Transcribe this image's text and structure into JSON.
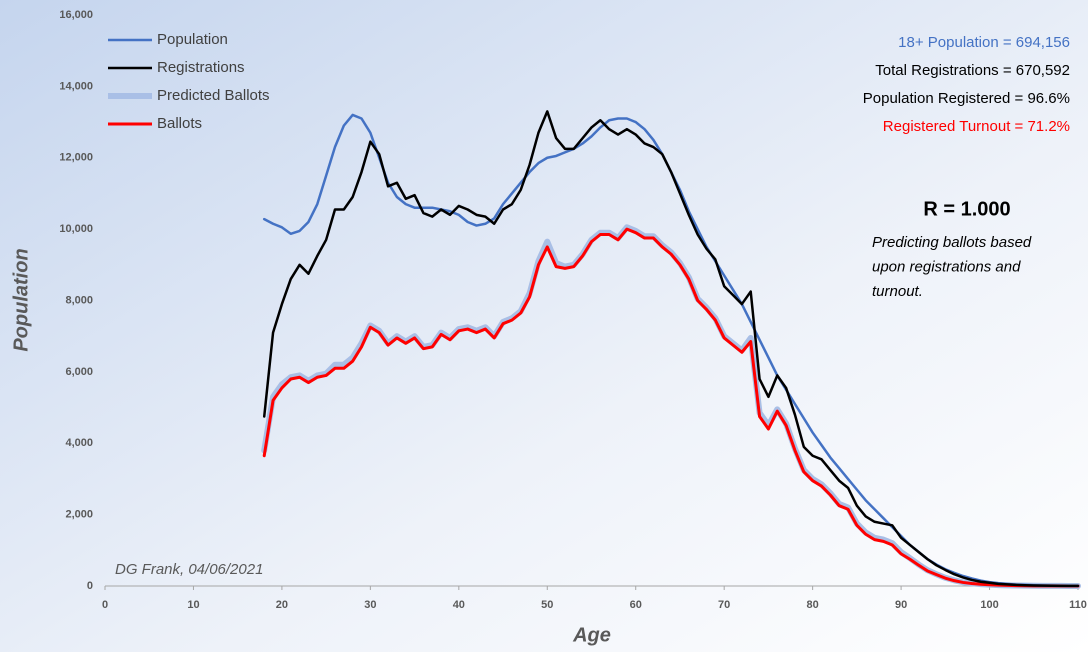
{
  "chart_data": {
    "type": "line",
    "xlabel": "Age",
    "ylabel": "Population",
    "xlim": [
      0,
      110
    ],
    "ylim": [
      0,
      16000
    ],
    "xticks": [
      0,
      10,
      20,
      30,
      40,
      50,
      60,
      70,
      80,
      90,
      100,
      110
    ],
    "yticks": [
      0,
      {
        "value": 2000,
        "label": "2,000"
      },
      {
        "value": 4000,
        "label": "4,000"
      },
      {
        "value": 6000,
        "label": "6,000"
      },
      {
        "value": 8000,
        "label": "8,000"
      },
      {
        "value": 10000,
        "label": "10,000"
      },
      {
        "value": 12000,
        "label": "12,000"
      },
      {
        "value": 14000,
        "label": "14,000"
      },
      {
        "value": 16000,
        "label": "16,000"
      }
    ],
    "legend": "upper left",
    "grid": false,
    "annotations": [
      {
        "text": "18+ Population = 694,156",
        "color": "#4472c4"
      },
      {
        "text": "Total Registrations = 670,592",
        "color": "#000000"
      },
      {
        "text": "Population Registered = 96.6%",
        "color": "#000000"
      },
      {
        "text": "Registered Turnout = 71.2%",
        "color": "#ff0000"
      }
    ],
    "r_label": "R = 1.000",
    "note": [
      "Predicting ballots based",
      "upon registrations and",
      "turnout."
    ],
    "credit": "DG Frank, 04/06/2021",
    "x": [
      18,
      19,
      20,
      21,
      22,
      23,
      24,
      25,
      26,
      27,
      28,
      29,
      30,
      31,
      32,
      33,
      34,
      35,
      36,
      37,
      38,
      39,
      40,
      41,
      42,
      43,
      44,
      45,
      46,
      47,
      48,
      49,
      50,
      51,
      52,
      53,
      54,
      55,
      56,
      57,
      58,
      59,
      60,
      61,
      62,
      63,
      64,
      65,
      66,
      67,
      68,
      69,
      70,
      71,
      72,
      73,
      74,
      75,
      76,
      77,
      78,
      79,
      80,
      81,
      82,
      83,
      84,
      85,
      86,
      87,
      88,
      89,
      90,
      91,
      92,
      93,
      94,
      95,
      96,
      97,
      98,
      99,
      100,
      101,
      102,
      103,
      104,
      105,
      106,
      107,
      108,
      109,
      110
    ],
    "series": [
      {
        "name": "Population",
        "color": "#4472c4",
        "width": 2.5,
        "values": [
          10280,
          10150,
          10050,
          9870,
          9950,
          10200,
          10700,
          11500,
          12300,
          12900,
          13200,
          13100,
          12700,
          12000,
          11300,
          10900,
          10700,
          10600,
          10600,
          10600,
          10550,
          10500,
          10400,
          10200,
          10100,
          10150,
          10300,
          10700,
          11000,
          11300,
          11600,
          11850,
          12000,
          12050,
          12150,
          12250,
          12400,
          12600,
          12850,
          13050,
          13100,
          13100,
          13000,
          12800,
          12500,
          12100,
          11600,
          11100,
          10500,
          10000,
          9500,
          9100,
          8700,
          8300,
          7900,
          7400,
          6900,
          6400,
          5900,
          5500,
          5100,
          4700,
          4300,
          3950,
          3600,
          3300,
          3000,
          2700,
          2400,
          2150,
          1900,
          1650,
          1400,
          1150,
          950,
          750,
          600,
          470,
          370,
          280,
          210,
          150,
          110,
          80,
          60,
          40,
          30,
          20,
          15,
          10,
          8,
          5,
          3
        ]
      },
      {
        "name": "Registrations",
        "color": "#000000",
        "width": 2.5,
        "values": [
          4750,
          7100,
          7900,
          8600,
          9000,
          8750,
          9250,
          9700,
          10550,
          10550,
          10900,
          11600,
          12450,
          12100,
          11200,
          11300,
          10850,
          10950,
          10450,
          10350,
          10550,
          10400,
          10650,
          10550,
          10400,
          10350,
          10150,
          10550,
          10700,
          11100,
          11800,
          12700,
          13300,
          12550,
          12250,
          12250,
          12550,
          12850,
          13050,
          12800,
          12650,
          12800,
          12650,
          12400,
          12300,
          12100,
          11600,
          11000,
          10400,
          9850,
          9450,
          9150,
          8400,
          8150,
          7900,
          8250,
          5800,
          5300,
          5900,
          5550,
          4800,
          3900,
          3650,
          3550,
          3250,
          2950,
          2750,
          2250,
          1950,
          1800,
          1750,
          1700,
          1350,
          1150,
          950,
          750,
          580,
          450,
          330,
          240,
          170,
          120,
          90,
          60,
          45,
          30,
          20,
          15,
          10,
          7,
          5,
          3,
          2
        ]
      },
      {
        "name": "Predicted Ballots",
        "color": "#a9bfe6",
        "width": 6,
        "values": [
          3800,
          5300,
          5650,
          5850,
          5900,
          5750,
          5900,
          5950,
          6200,
          6200,
          6400,
          6800,
          7300,
          7150,
          6800,
          7000,
          6850,
          7000,
          6700,
          6750,
          7100,
          6950,
          7200,
          7250,
          7150,
          7250,
          7000,
          7400,
          7500,
          7700,
          8200,
          9100,
          9650,
          9050,
          8950,
          9000,
          9300,
          9700,
          9900,
          9900,
          9750,
          10050,
          9950,
          9800,
          9800,
          9550,
          9350,
          9050,
          8650,
          8050,
          7800,
          7500,
          7000,
          6800,
          6600,
          6950,
          4850,
          4500,
          4950,
          4550,
          3850,
          3250,
          3000,
          2850,
          2600,
          2300,
          2200,
          1750,
          1500,
          1350,
          1300,
          1200,
          950,
          780,
          600,
          440,
          330,
          230,
          160,
          105,
          75,
          52,
          37,
          26,
          19,
          13,
          9,
          6,
          4,
          3,
          2,
          1,
          1
        ]
      },
      {
        "name": "Ballots",
        "color": "#ff0000",
        "width": 3,
        "values": [
          3650,
          5200,
          5550,
          5800,
          5850,
          5700,
          5850,
          5900,
          6100,
          6100,
          6300,
          6700,
          7250,
          7100,
          6750,
          6950,
          6800,
          6950,
          6650,
          6700,
          7050,
          6900,
          7150,
          7200,
          7100,
          7200,
          6950,
          7350,
          7450,
          7650,
          8100,
          9000,
          9500,
          8950,
          8900,
          8950,
          9250,
          9650,
          9850,
          9850,
          9700,
          10000,
          9900,
          9750,
          9750,
          9500,
          9300,
          9000,
          8600,
          8000,
          7750,
          7450,
          6950,
          6750,
          6550,
          6850,
          4750,
          4400,
          4900,
          4500,
          3800,
          3200,
          2950,
          2800,
          2550,
          2250,
          2150,
          1700,
          1450,
          1300,
          1250,
          1150,
          900,
          750,
          580,
          420,
          320,
          220,
          150,
          100,
          70,
          50,
          35,
          25,
          18,
          12,
          8,
          5,
          4,
          3,
          2,
          1,
          1
        ]
      }
    ]
  }
}
